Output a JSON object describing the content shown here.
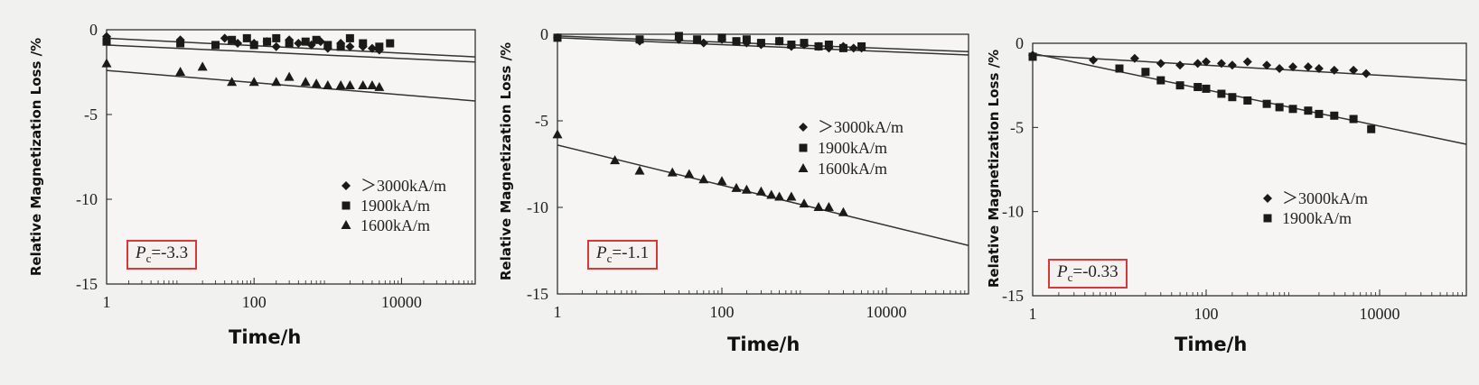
{
  "chart_data": [
    {
      "type": "scatter",
      "title": "",
      "xlabel": "Time/h",
      "ylabel": "Relative Magnetization Loss /%",
      "x_scale": "log",
      "xlim": [
        1,
        100000
      ],
      "ylim": [
        -15,
        0
      ],
      "x_ticks": [
        "1",
        "100",
        "10000"
      ],
      "y_ticks": [
        "0",
        "-5",
        "-10",
        "-15"
      ],
      "legend_position": "bottom-right",
      "annotation": {
        "symbol": "P",
        "subscript": "c",
        "value": "=-3.3"
      },
      "series": [
        {
          "name": "＞3000kA/m",
          "marker": "diamond",
          "x": [
            1,
            10,
            40,
            60,
            100,
            150,
            200,
            300,
            400,
            600,
            800,
            1000,
            1500,
            2000,
            3000,
            4000,
            5000
          ],
          "y": [
            -0.4,
            -0.6,
            -0.5,
            -0.8,
            -0.8,
            -0.7,
            -1.0,
            -0.6,
            -0.8,
            -0.9,
            -0.7,
            -1.1,
            -0.8,
            -1.0,
            -1.0,
            -1.1,
            -1.2
          ]
        },
        {
          "name": "1900kA/m",
          "marker": "square",
          "x": [
            1,
            10,
            30,
            50,
            80,
            100,
            150,
            200,
            300,
            500,
            700,
            1000,
            1500,
            2000,
            3000,
            5000,
            7000
          ],
          "y": [
            -0.7,
            -0.8,
            -0.9,
            -0.6,
            -0.5,
            -0.9,
            -0.7,
            -0.5,
            -0.8,
            -0.7,
            -0.6,
            -0.9,
            -1.0,
            -0.5,
            -0.8,
            -1.0,
            -0.8
          ]
        },
        {
          "name": "1600kA/m",
          "marker": "triangle",
          "x": [
            1,
            10,
            20,
            50,
            100,
            200,
            300,
            500,
            700,
            1000,
            1500,
            2000,
            3000,
            4000,
            5000
          ],
          "y": [
            -2.0,
            -2.5,
            -2.2,
            -3.1,
            -3.1,
            -3.1,
            -2.8,
            -3.1,
            -3.2,
            -3.3,
            -3.3,
            -3.3,
            -3.3,
            -3.3,
            -3.4
          ]
        }
      ],
      "fits": [
        {
          "x": [
            1,
            100000
          ],
          "y": [
            -0.5,
            -1.6
          ]
        },
        {
          "x": [
            1,
            100000
          ],
          "y": [
            -0.9,
            -1.9
          ]
        },
        {
          "x": [
            1,
            100000
          ],
          "y": [
            -2.4,
            -4.2
          ]
        }
      ]
    },
    {
      "type": "scatter",
      "title": "",
      "xlabel": "Time/h",
      "ylabel": "Relative Magnetization Loss /%",
      "x_scale": "log",
      "xlim": [
        1,
        100000
      ],
      "ylim": [
        -15,
        0
      ],
      "x_ticks": [
        "1",
        "100",
        "10000"
      ],
      "y_ticks": [
        "0",
        "-5",
        "-10",
        "-15"
      ],
      "legend_position": "middle-right",
      "annotation": {
        "symbol": "P",
        "subscript": "c",
        "value": "=-1.1"
      },
      "series": [
        {
          "name": "＞3000kA/m",
          "marker": "diamond",
          "x": [
            1,
            10,
            30,
            60,
            100,
            200,
            300,
            500,
            700,
            1000,
            1500,
            2000,
            3000,
            4000,
            5000
          ],
          "y": [
            -0.2,
            -0.4,
            -0.3,
            -0.5,
            -0.3,
            -0.5,
            -0.6,
            -0.4,
            -0.7,
            -0.6,
            -0.7,
            -0.8,
            -0.7,
            -0.8,
            -0.8
          ]
        },
        {
          "name": "1900kA/m",
          "marker": "square",
          "x": [
            1,
            10,
            30,
            50,
            100,
            150,
            200,
            300,
            500,
            700,
            1000,
            1500,
            2000,
            3000,
            5000
          ],
          "y": [
            -0.2,
            -0.3,
            -0.1,
            -0.3,
            -0.2,
            -0.4,
            -0.3,
            -0.5,
            -0.4,
            -0.6,
            -0.5,
            -0.7,
            -0.6,
            -0.8,
            -0.7
          ]
        },
        {
          "name": "1600kA/m",
          "marker": "triangle",
          "x": [
            1,
            5,
            10,
            25,
            40,
            60,
            100,
            150,
            200,
            300,
            400,
            500,
            700,
            1000,
            1500,
            2000,
            3000
          ],
          "y": [
            -5.8,
            -7.3,
            -7.9,
            -8.0,
            -8.1,
            -8.4,
            -8.5,
            -8.9,
            -9.0,
            -9.1,
            -9.3,
            -9.4,
            -9.4,
            -9.8,
            -10.0,
            -10.0,
            -10.3
          ]
        }
      ],
      "fits": [
        {
          "x": [
            1,
            100000
          ],
          "y": [
            -0.1,
            -1.0
          ]
        },
        {
          "x": [
            1,
            100000
          ],
          "y": [
            -0.2,
            -1.2
          ]
        },
        {
          "x": [
            1,
            100000
          ],
          "y": [
            -6.4,
            -12.2
          ]
        }
      ]
    },
    {
      "type": "scatter",
      "title": "",
      "xlabel": "Time/h",
      "ylabel": "Relative Magnetization Loss /%",
      "x_scale": "log",
      "xlim": [
        1,
        100000
      ],
      "ylim": [
        -15,
        0
      ],
      "x_ticks": [
        "1",
        "100",
        "10000"
      ],
      "y_ticks": [
        "0",
        "-5",
        "-10",
        "-15"
      ],
      "legend_position": "bottom-right",
      "annotation": {
        "symbol": "P",
        "subscript": "c",
        "value": "=-0.33"
      },
      "series": [
        {
          "name": "＞3000kA/m",
          "marker": "diamond",
          "x": [
            1,
            5,
            15,
            30,
            50,
            80,
            100,
            150,
            200,
            300,
            500,
            700,
            1000,
            1500,
            2000,
            3000,
            5000,
            7000
          ],
          "y": [
            -0.7,
            -1.0,
            -0.9,
            -1.2,
            -1.3,
            -1.2,
            -1.1,
            -1.2,
            -1.3,
            -1.1,
            -1.3,
            -1.5,
            -1.4,
            -1.4,
            -1.5,
            -1.6,
            -1.6,
            -1.8
          ]
        },
        {
          "name": "1900kA/m",
          "marker": "square",
          "x": [
            1,
            10,
            20,
            30,
            50,
            80,
            100,
            150,
            200,
            300,
            500,
            700,
            1000,
            1500,
            2000,
            3000,
            5000,
            8000
          ],
          "y": [
            -0.8,
            -1.5,
            -1.7,
            -2.2,
            -2.5,
            -2.6,
            -2.7,
            -3.0,
            -3.2,
            -3.4,
            -3.6,
            -3.8,
            -3.9,
            -4.0,
            -4.2,
            -4.3,
            -4.5,
            -5.1
          ]
        }
      ],
      "fits": [
        {
          "x": [
            1,
            100000
          ],
          "y": [
            -0.7,
            -2.2
          ]
        },
        {
          "x": [
            1,
            100000
          ],
          "y": [
            -0.6,
            -6.0
          ]
        }
      ]
    }
  ]
}
